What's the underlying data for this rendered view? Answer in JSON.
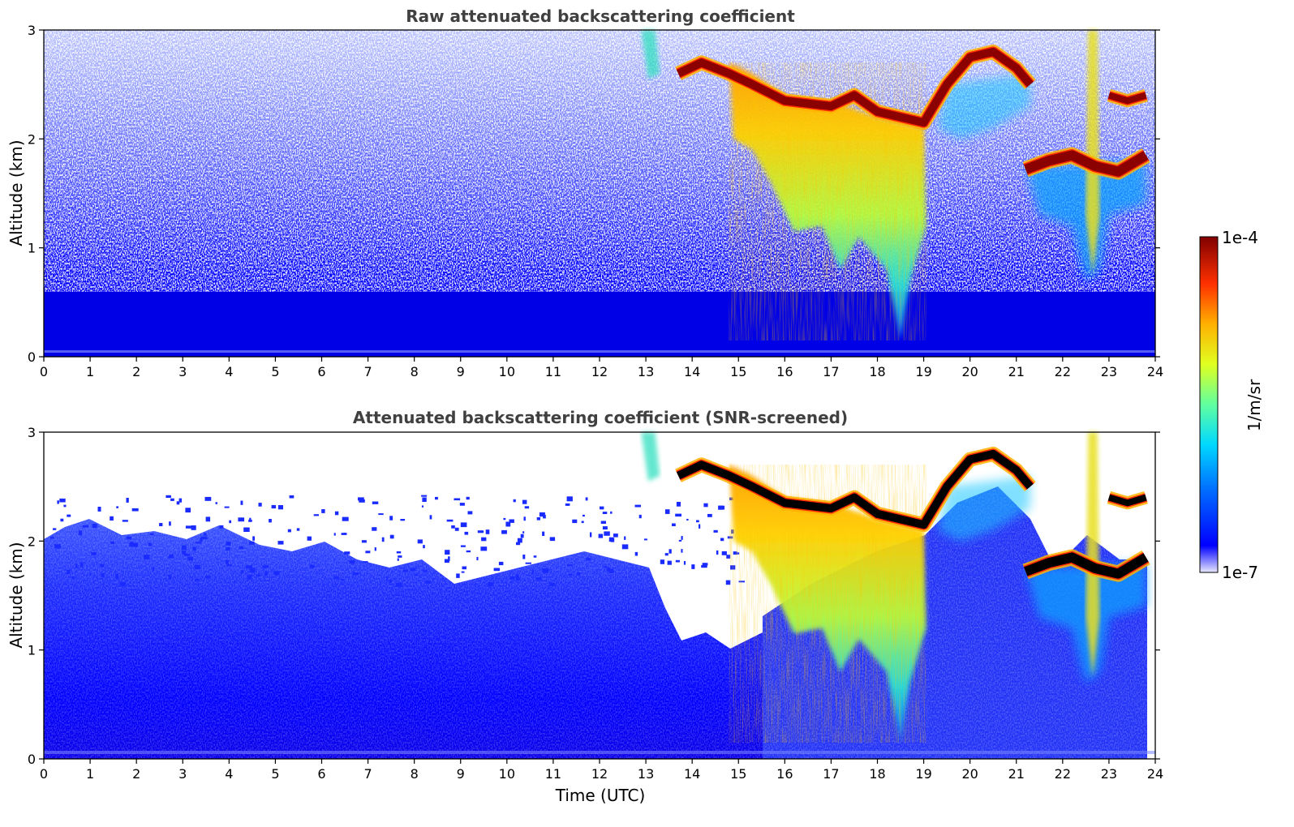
{
  "chart_data": {
    "type": "heatmap",
    "figure": {
      "xlabel": "Time (UTC)",
      "xlim": [
        0,
        24
      ],
      "xticks": [
        0,
        1,
        2,
        3,
        4,
        5,
        6,
        7,
        8,
        9,
        10,
        11,
        12,
        13,
        14,
        15,
        16,
        17,
        18,
        19,
        20,
        21,
        22,
        23,
        24
      ],
      "ylim": [
        0,
        3
      ],
      "yticks": [
        0,
        1,
        2,
        3
      ]
    },
    "panels": [
      {
        "title": "Raw attenuated backscattering coefficient",
        "ylabel": "Altitude (km)",
        "snr_screened": false
      },
      {
        "title": "Attenuated backscattering coefficient (SNR-screened)",
        "ylabel": "Altitude (km)",
        "snr_screened": true
      }
    ],
    "colorbar": {
      "label": "1/m/sr",
      "min_label": "1e-7",
      "max_label": "1e-4",
      "scale": "log",
      "colormap": "jet"
    },
    "features": {
      "cloud_top_layer": [
        [
          13.7,
          2.6
        ],
        [
          14.2,
          2.7
        ],
        [
          14.8,
          2.6
        ],
        [
          15.3,
          2.5
        ],
        [
          16,
          2.35
        ],
        [
          17,
          2.3
        ],
        [
          17.5,
          2.4
        ],
        [
          18,
          2.25
        ],
        [
          19,
          2.15
        ],
        [
          19.5,
          2.5
        ],
        [
          20,
          2.75
        ],
        [
          20.5,
          2.8
        ],
        [
          21,
          2.65
        ],
        [
          21.3,
          2.5
        ]
      ],
      "right_low_layer": [
        [
          21.2,
          1.72
        ],
        [
          21.7,
          1.8
        ],
        [
          22.2,
          1.85
        ],
        [
          22.7,
          1.75
        ],
        [
          23.2,
          1.7
        ],
        [
          23.8,
          1.85
        ]
      ],
      "right_upper_layer": [
        [
          23,
          2.4
        ],
        [
          23.4,
          2.35
        ],
        [
          23.8,
          2.4
        ]
      ],
      "fallstreak_core": [
        [
          15.3,
          2.5
        ],
        [
          15.6,
          1.6
        ],
        [
          16.2,
          1.5
        ],
        [
          17.2,
          1.3
        ],
        [
          18.3,
          0.6
        ],
        [
          18.5,
          0.2
        ],
        [
          19,
          0.9
        ]
      ]
    }
  }
}
